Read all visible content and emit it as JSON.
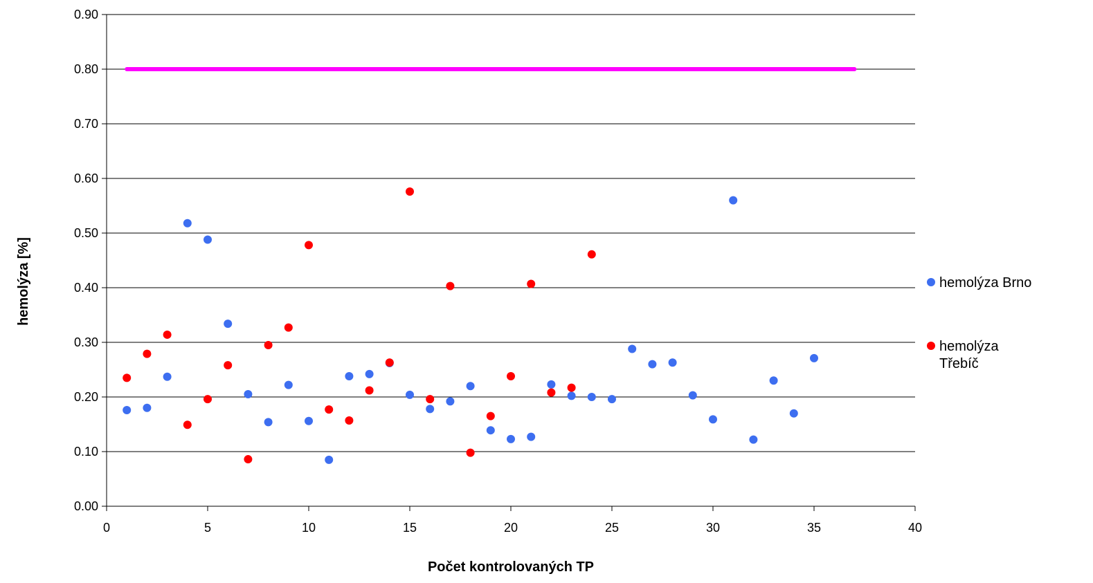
{
  "chart_data": {
    "type": "scatter",
    "xlabel": "Počet kontrolovaných TP",
    "ylabel": "hemolýza [%]",
    "xlim": [
      0,
      40
    ],
    "ylim": [
      0,
      0.9
    ],
    "x_ticks": [
      0,
      5,
      10,
      15,
      20,
      25,
      30,
      35,
      40
    ],
    "y_ticks": [
      "0.00",
      "0.10",
      "0.20",
      "0.30",
      "0.40",
      "0.50",
      "0.60",
      "0.70",
      "0.80",
      "0.90"
    ],
    "grid": "horizontal",
    "legend_position": "right",
    "limit_line": {
      "y": 0.8,
      "x": [
        1,
        37
      ],
      "color": "#ff00ff"
    },
    "series": [
      {
        "name": "hemolýza Brno",
        "color": "#3d6ef0",
        "points": [
          [
            1,
            0.176
          ],
          [
            2,
            0.18
          ],
          [
            3,
            0.237
          ],
          [
            4,
            0.518
          ],
          [
            5,
            0.488
          ],
          [
            6,
            0.334
          ],
          [
            7,
            0.205
          ],
          [
            8,
            0.154
          ],
          [
            9,
            0.222
          ],
          [
            10,
            0.156
          ],
          [
            11,
            0.085
          ],
          [
            12,
            0.238
          ],
          [
            13,
            0.242
          ],
          [
            14,
            0.262
          ],
          [
            15,
            0.204
          ],
          [
            16,
            0.178
          ],
          [
            17,
            0.192
          ],
          [
            18,
            0.22
          ],
          [
            19,
            0.139
          ],
          [
            20,
            0.123
          ],
          [
            21,
            0.127
          ],
          [
            22,
            0.223
          ],
          [
            23,
            0.202
          ],
          [
            24,
            0.2
          ],
          [
            25,
            0.196
          ],
          [
            26,
            0.288
          ],
          [
            27,
            0.26
          ],
          [
            28,
            0.263
          ],
          [
            29,
            0.203
          ],
          [
            30,
            0.159
          ],
          [
            31,
            0.56
          ],
          [
            32,
            0.122
          ],
          [
            33,
            0.23
          ],
          [
            34,
            0.17
          ],
          [
            35,
            0.271
          ]
        ]
      },
      {
        "name": "hemolýza Třebíč",
        "color": "#ff0000",
        "points": [
          [
            1,
            0.235
          ],
          [
            2,
            0.279
          ],
          [
            3,
            0.314
          ],
          [
            4,
            0.149
          ],
          [
            5,
            0.196
          ],
          [
            6,
            0.258
          ],
          [
            7,
            0.086
          ],
          [
            8,
            0.295
          ],
          [
            9,
            0.327
          ],
          [
            10,
            0.478
          ],
          [
            11,
            0.177
          ],
          [
            12,
            0.157
          ],
          [
            13,
            0.212
          ],
          [
            14,
            0.263
          ],
          [
            15,
            0.576
          ],
          [
            16,
            0.196
          ],
          [
            17,
            0.403
          ],
          [
            18,
            0.098
          ],
          [
            19,
            0.165
          ],
          [
            20,
            0.238
          ],
          [
            21,
            0.407
          ],
          [
            22,
            0.208
          ],
          [
            23,
            0.217
          ],
          [
            24,
            0.461
          ]
        ]
      }
    ]
  }
}
